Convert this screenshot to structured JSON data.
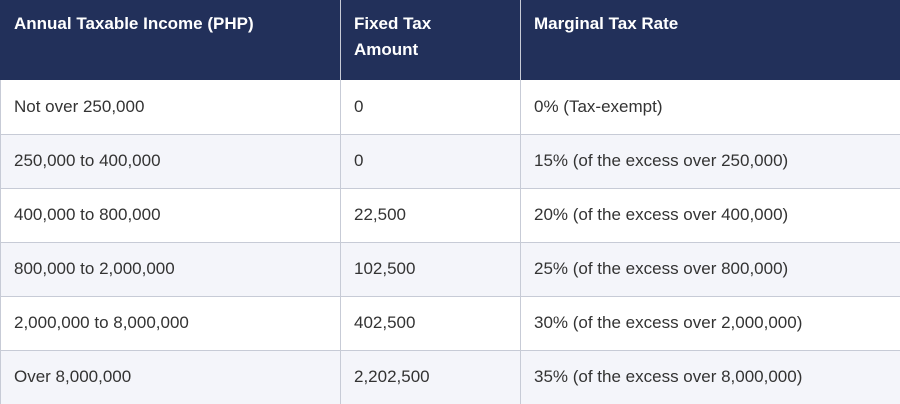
{
  "table": {
    "headers": [
      "Annual Taxable Income (PHP)",
      "Fixed Tax\nAmount",
      "Marginal Tax Rate"
    ],
    "header_bg": "#22305a",
    "rows": [
      [
        "Not over 250,000",
        "0",
        "0% (Tax-exempt)"
      ],
      [
        "250,000 to 400,000",
        "0",
        "15% (of the excess over 250,000)"
      ],
      [
        "400,000 to 800,000",
        "22,500",
        "20% (of the excess over 400,000)"
      ],
      [
        "800,000 to 2,000,000",
        "102,500",
        "25% (of the excess over 800,000)"
      ],
      [
        "2,000,000 to 8,000,000",
        "402,500",
        "30% (of the excess over 2,000,000)"
      ],
      [
        "Over 8,000,000",
        "2,202,500",
        "35% (of the excess over 8,000,000)"
      ]
    ]
  }
}
